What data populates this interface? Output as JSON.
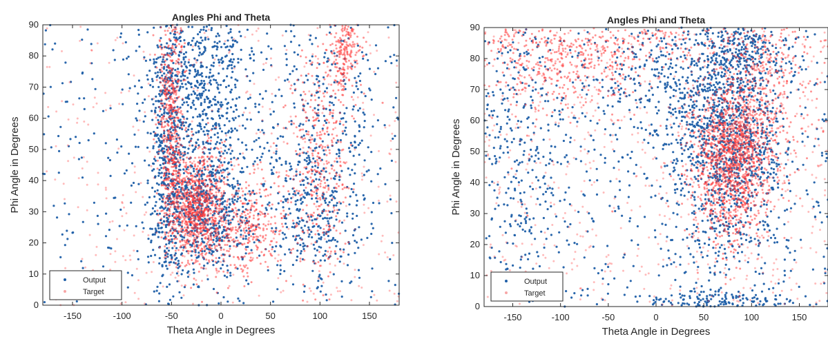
{
  "colors": {
    "output": "#1f5fa8",
    "target": "#ff3b3b",
    "target_light": "#f7a6a6",
    "axis": "#262626"
  },
  "chart_data": [
    {
      "type": "scatter",
      "title": "Angles Phi and Theta",
      "xlabel": "Theta Angle in Degrees",
      "ylabel": "Phi Angle in Degrees",
      "xlim": [
        -180,
        180
      ],
      "ylim": [
        0,
        90
      ],
      "xticks": [
        -150,
        -100,
        -50,
        0,
        50,
        100,
        150
      ],
      "yticks": [
        0,
        10,
        20,
        30,
        40,
        50,
        60,
        70,
        80,
        90
      ],
      "grid": false,
      "legend_position": "bottom-left",
      "series": [
        {
          "name": "Output",
          "color": "#1f5fa8",
          "point_count": 2600,
          "distribution": [
            {
              "weight": 0.15,
              "center": [
                -55,
                45
              ],
              "spread": [
                8,
                22
              ]
            },
            {
              "weight": 0.25,
              "center": [
                -15,
                30
              ],
              "spread": [
                25,
                10
              ]
            },
            {
              "weight": 0.2,
              "center": [
                -20,
                65
              ],
              "spread": [
                30,
                15
              ]
            },
            {
              "weight": 0.12,
              "center": [
                90,
                30
              ],
              "spread": [
                25,
                12
              ]
            },
            {
              "weight": 0.14,
              "center": [
                0,
                45
              ],
              "spread": [
                180,
                90
              ],
              "uniform": true
            },
            {
              "weight": 0.08,
              "center": [
                110,
                60
              ],
              "spread": [
                25,
                18
              ]
            },
            {
              "weight": 0.06,
              "center": [
                -30,
                80
              ],
              "spread": [
                25,
                8
              ]
            }
          ]
        },
        {
          "name": "Target",
          "color": "#ff3b3b",
          "point_count": 2800,
          "distribution": [
            {
              "weight": 0.3,
              "center": [
                -25,
                32
              ],
              "spread": [
                14,
                9
              ]
            },
            {
              "weight": 0.2,
              "center": [
                -50,
                60
              ],
              "spread": [
                7,
                20
              ]
            },
            {
              "weight": 0.15,
              "center": [
                20,
                25
              ],
              "spread": [
                25,
                8
              ]
            },
            {
              "weight": 0.13,
              "center": [
                100,
                45
              ],
              "spread": [
                15,
                20
              ]
            },
            {
              "weight": 0.07,
              "center": [
                125,
                82
              ],
              "spread": [
                8,
                6
              ]
            },
            {
              "weight": 0.15,
              "center": [
                0,
                45
              ],
              "spread": [
                180,
                90
              ],
              "uniform": true
            }
          ]
        }
      ]
    },
    {
      "type": "scatter",
      "title": "Angles Phi and Theta",
      "xlabel": "Theta Angle in Degrees",
      "ylabel": "Phi Angle in Degrees",
      "xlim": [
        -180,
        180
      ],
      "ylim": [
        0,
        90
      ],
      "xticks": [
        -150,
        -100,
        -50,
        0,
        50,
        100,
        150
      ],
      "yticks": [
        0,
        10,
        20,
        30,
        40,
        50,
        60,
        70,
        80,
        90
      ],
      "grid": false,
      "legend_position": "bottom-left",
      "series": [
        {
          "name": "Output",
          "color": "#1f5fa8",
          "point_count": 2600,
          "distribution": [
            {
              "weight": 0.4,
              "center": [
                75,
                50
              ],
              "spread": [
                30,
                17
              ]
            },
            {
              "weight": 0.15,
              "center": [
                80,
                80
              ],
              "spread": [
                30,
                8
              ]
            },
            {
              "weight": 0.2,
              "center": [
                0,
                45
              ],
              "spread": [
                180,
                90
              ],
              "uniform": true
            },
            {
              "weight": 0.1,
              "center": [
                -140,
                50
              ],
              "spread": [
                30,
                25
              ]
            },
            {
              "weight": 0.06,
              "center": [
                60,
                2
              ],
              "spread": [
                40,
                2
              ]
            },
            {
              "weight": 0.09,
              "center": [
                0,
                75
              ],
              "spread": [
                45,
                12
              ]
            }
          ]
        },
        {
          "name": "Target",
          "color": "#ff3b3b",
          "point_count": 3000,
          "distribution": [
            {
              "weight": 0.45,
              "center": [
                80,
                48
              ],
              "spread": [
                20,
                13
              ]
            },
            {
              "weight": 0.15,
              "center": [
                -110,
                80
              ],
              "spread": [
                50,
                10
              ]
            },
            {
              "weight": 0.22,
              "center": [
                0,
                45
              ],
              "spread": [
                180,
                90
              ],
              "uniform": true
            },
            {
              "weight": 0.1,
              "center": [
                120,
                70
              ],
              "spread": [
                25,
                15
              ]
            },
            {
              "weight": 0.08,
              "center": [
                0,
                85
              ],
              "spread": [
                80,
                5
              ]
            }
          ]
        }
      ]
    }
  ]
}
